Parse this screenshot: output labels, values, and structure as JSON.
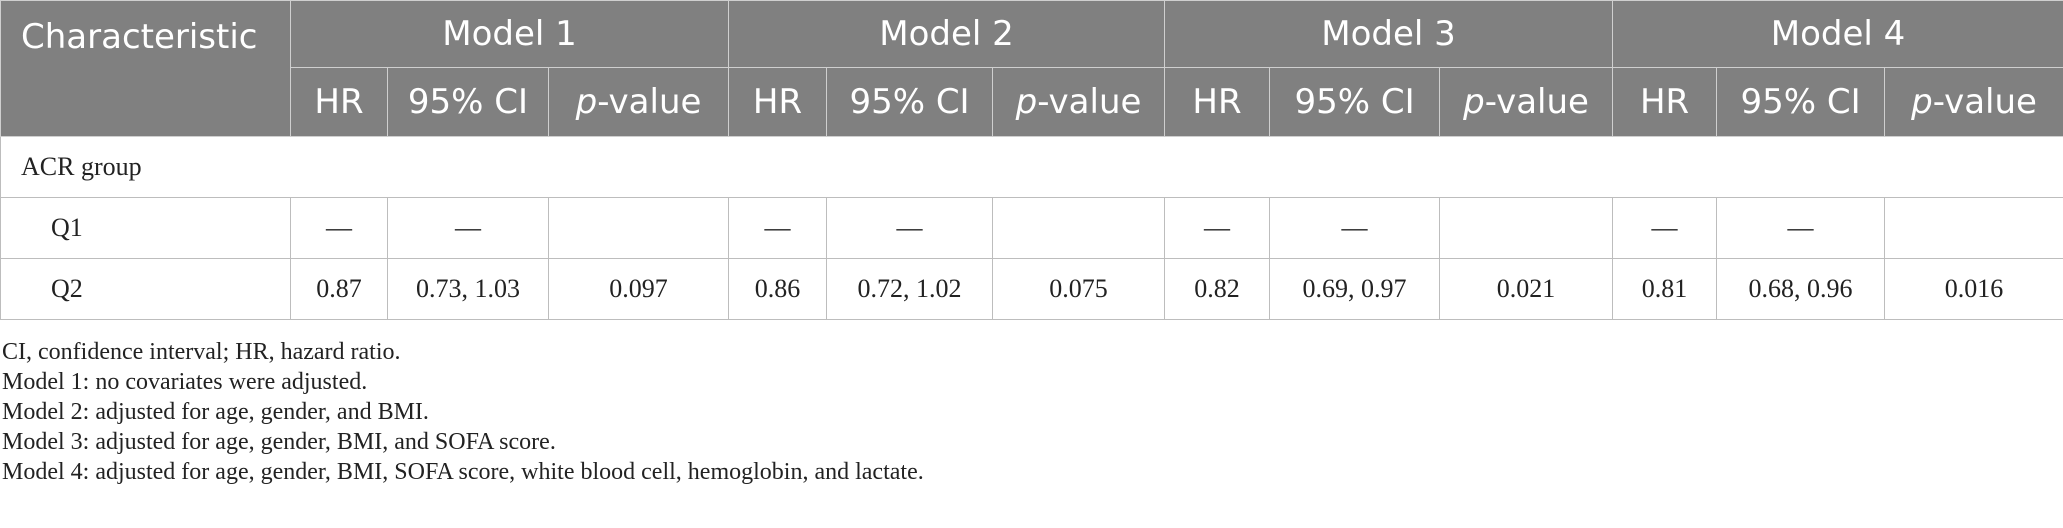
{
  "table": {
    "characteristic_header": "Characteristic",
    "models": [
      "Model 1",
      "Model 2",
      "Model 3",
      "Model 4"
    ],
    "sub_headers": {
      "hr": "HR",
      "ci": "95% CI",
      "p_italic": "p",
      "p_rest": "-value"
    },
    "group_label": "ACR group",
    "rows": [
      {
        "label": "Q1",
        "cells": [
          "—",
          "—",
          "",
          "—",
          "—",
          "",
          "—",
          "—",
          "",
          "—",
          "—",
          ""
        ]
      },
      {
        "label": "Q2",
        "cells": [
          "0.87",
          "0.73, 1.03",
          "0.097",
          "0.86",
          "0.72, 1.02",
          "0.075",
          "0.82",
          "0.69, 0.97",
          "0.021",
          "0.81",
          "0.68, 0.96",
          "0.016"
        ]
      }
    ]
  },
  "notes": [
    "CI, confidence interval; HR, hazard ratio.",
    "Model 1: no covariates were adjusted.",
    "Model 2: adjusted for age, gender, and BMI.",
    "Model 3: adjusted for age, gender, BMI, and SOFA score.",
    "Model 4: adjusted for age, gender, BMI, SOFA score, white blood cell, hemoglobin, and lactate."
  ]
}
